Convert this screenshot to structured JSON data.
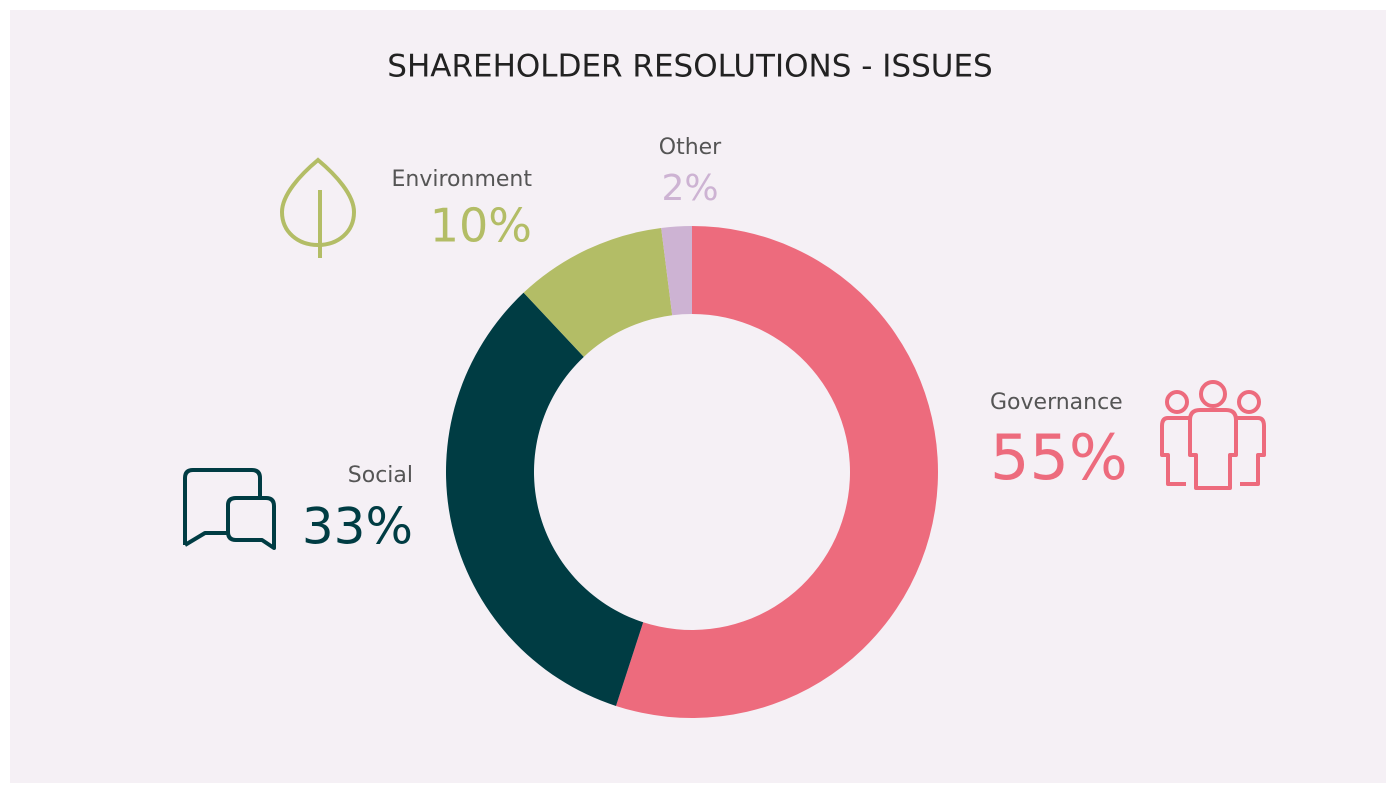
{
  "chart_data": {
    "type": "donut",
    "title": "SHAREHOLDER RESOLUTIONS - ISSUES",
    "categories": [
      "Governance",
      "Social",
      "Environment",
      "Other"
    ],
    "values": [
      55,
      33,
      10,
      2
    ],
    "value_labels": [
      "55%",
      "33%",
      "10%",
      "2%"
    ],
    "colors": [
      "#ed6b7d",
      "#003c43",
      "#b3bd66",
      "#cdb3d3"
    ]
  }
}
